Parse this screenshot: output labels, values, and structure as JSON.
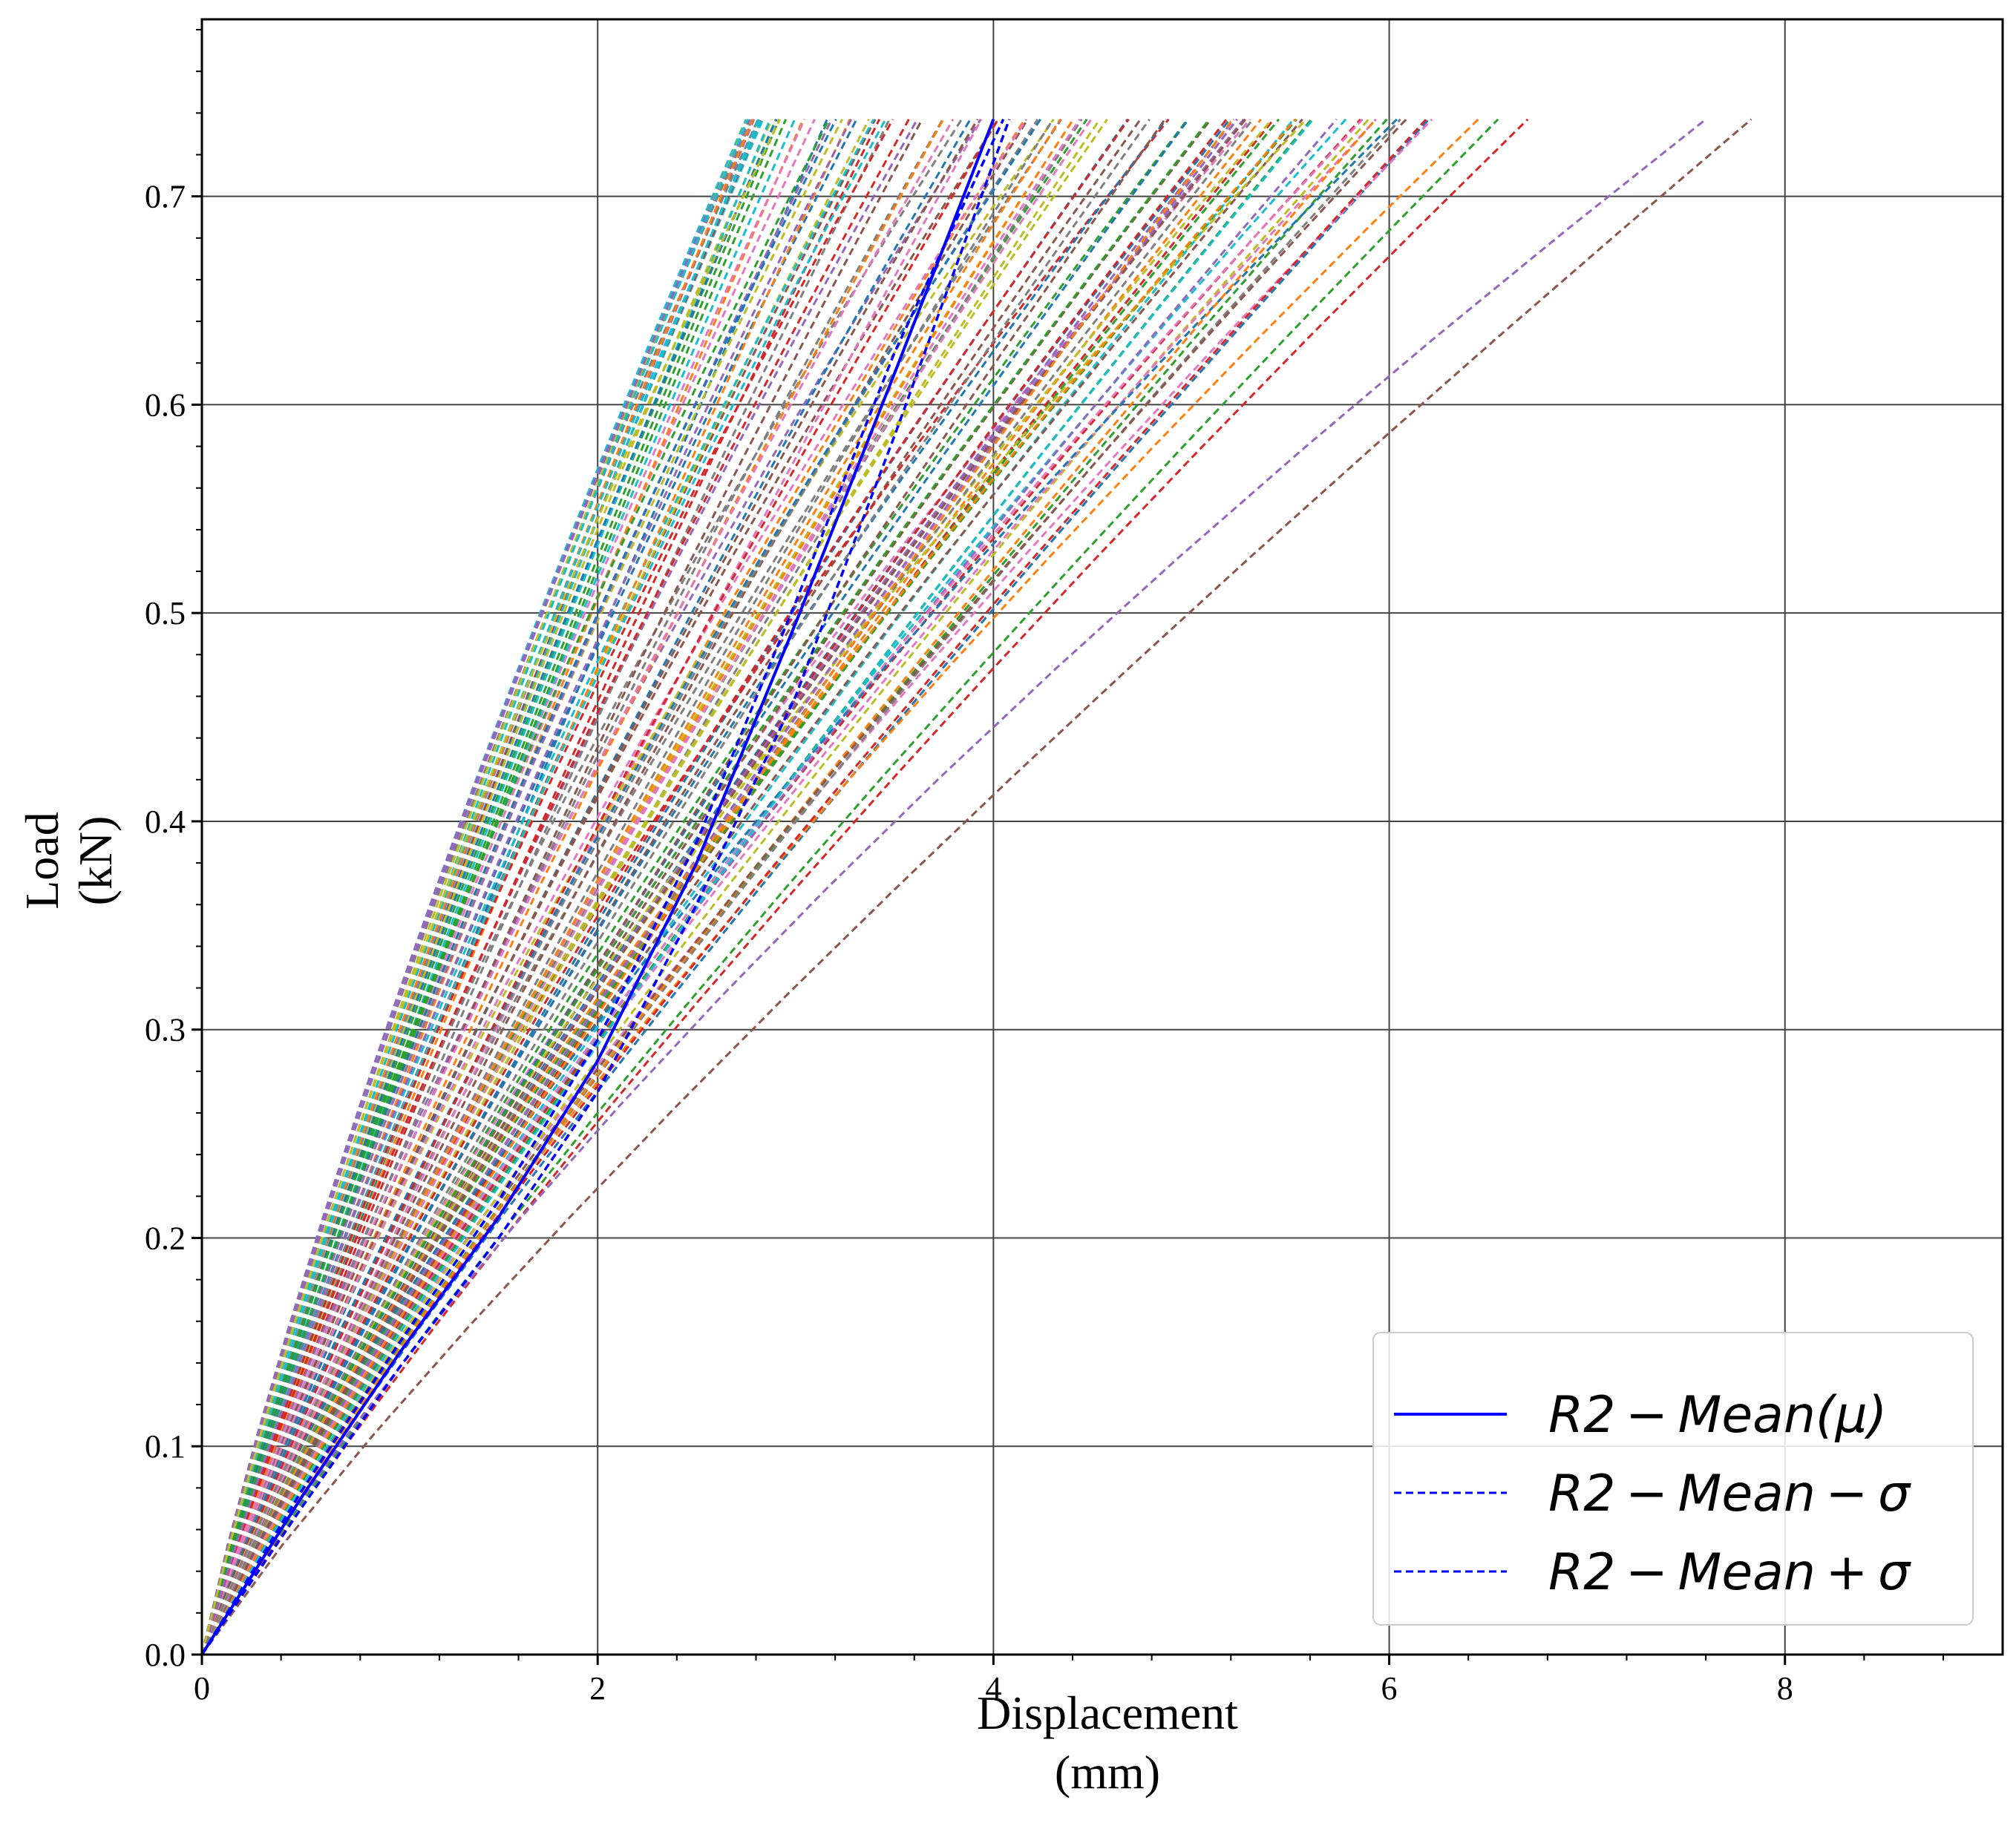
{
  "chart_data": {
    "type": "line",
    "title": "",
    "xlabel": "Displacement",
    "xlabel_unit": "(mm)",
    "ylabel": "Load",
    "ylabel_unit": "(kN)",
    "xlim": [
      0,
      9.1
    ],
    "ylim": [
      0,
      0.785
    ],
    "xticks": [
      0,
      2,
      4,
      6,
      8
    ],
    "xtick_labels": [
      "0",
      "2",
      "4",
      "6",
      "8"
    ],
    "yticks": [
      0.0,
      0.1,
      0.2,
      0.3,
      0.4,
      0.5,
      0.6,
      0.7
    ],
    "ytick_labels": [
      "0.0",
      "0.1",
      "0.2",
      "0.3",
      "0.4",
      "0.5",
      "0.6",
      "0.7"
    ],
    "grid": true,
    "legend_position": "bottom-right",
    "max_load": 0.737,
    "palette": [
      "#1f77b4",
      "#ff7f0e",
      "#2ca02c",
      "#d62728",
      "#9467bd",
      "#8c564b",
      "#e377c2",
      "#7f7f7f",
      "#bcbd22",
      "#17becf"
    ],
    "sample_curve_style": "dashed",
    "sample_curve_count": 120,
    "sample_end_displacement_range": [
      2.75,
      7.85
    ],
    "sample_end_displacements_outliers": [
      6.2,
      6.45,
      6.55,
      6.7,
      7.6,
      7.83
    ],
    "series": [
      {
        "name": "R2 - Mean(μ)",
        "legend_label": "R2 − Mean(μ)",
        "style": "solid",
        "color": "#0000ff",
        "x": [
          0,
          0.5,
          1.0,
          1.5,
          2.0,
          2.5,
          3.0,
          3.5,
          4.0
        ],
        "y": [
          0,
          0.075,
          0.145,
          0.21,
          0.285,
          0.38,
          0.495,
          0.615,
          0.737
        ]
      },
      {
        "name": "R2 - Mean - σ",
        "legend_label": "R2 − Mean − σ",
        "style": "dashed",
        "color": "#0000ff",
        "x": [
          0,
          0.5,
          1.0,
          1.5,
          2.0,
          2.5,
          3.0,
          3.5,
          4.08
        ],
        "y": [
          0,
          0.07,
          0.138,
          0.2,
          0.27,
          0.36,
          0.46,
          0.585,
          0.737
        ]
      },
      {
        "name": "R2 - Mean + σ",
        "legend_label": "R2 − Mean + σ",
        "style": "dashed",
        "color": "#0000ff",
        "x": [
          0,
          0.5,
          1.0,
          1.5,
          2.0,
          2.5,
          3.0,
          3.5,
          4.05
        ],
        "y": [
          0,
          0.078,
          0.15,
          0.218,
          0.295,
          0.39,
          0.505,
          0.625,
          0.737
        ]
      }
    ]
  }
}
